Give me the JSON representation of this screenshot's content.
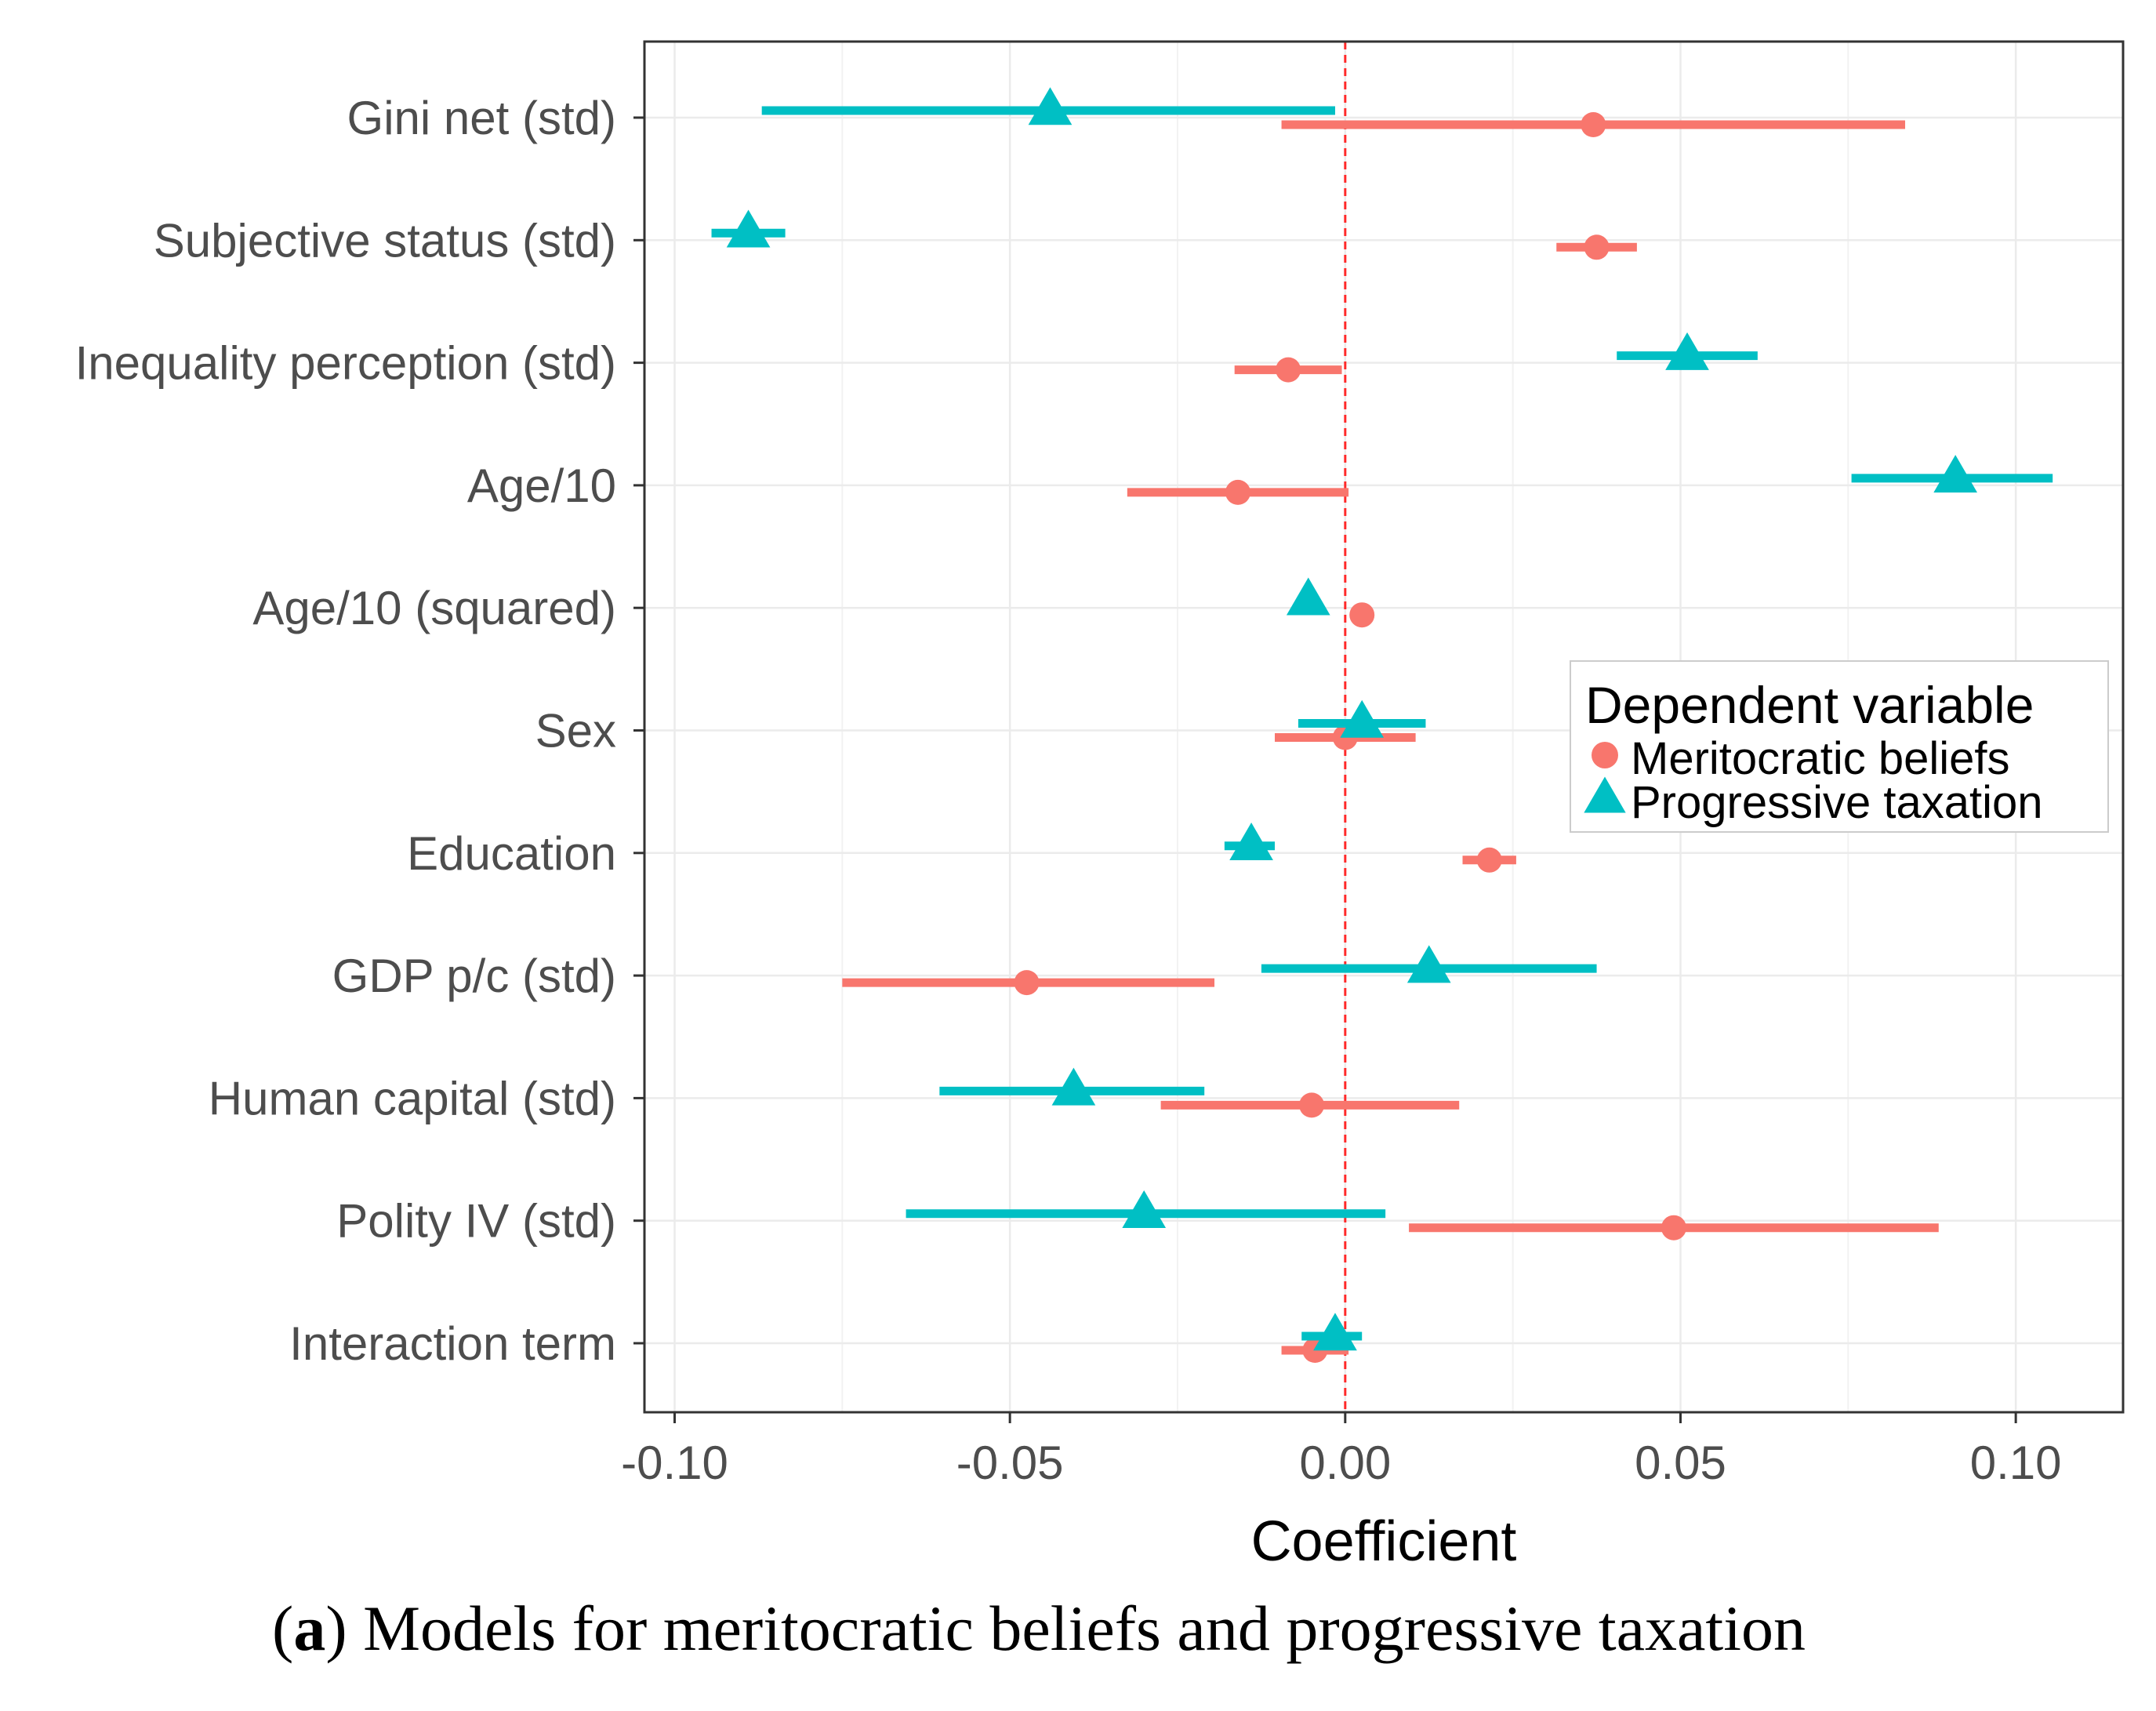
{
  "chart_data": {
    "type": "coefficient-plot",
    "xlabel": "Coefficient",
    "xlim": [
      -0.1045,
      0.116
    ],
    "x_ticks": [
      -0.1,
      -0.05,
      0.0,
      0.05,
      0.1
    ],
    "x_tick_labels": [
      "-0.10",
      "-0.05",
      "0.00",
      "0.05",
      "0.10"
    ],
    "reference_line": 0.0,
    "grid": true,
    "legend": {
      "title": "Dependent variable",
      "placement": "right",
      "entries": [
        "Meritocratic beliefs",
        "Progressive taxation"
      ]
    },
    "categories": [
      "Gini net (std)",
      "Subjective status (std)",
      "Inequality perception (std)",
      "Age/10",
      "Age/10 (squared)",
      "Sex",
      "Education",
      "GDP p/c (std)",
      "Human capital (std)",
      "Polity IV (std)",
      "Interaction term"
    ],
    "series": [
      {
        "name": "Meritocratic beliefs",
        "color": "#F8766D",
        "marker": "circle",
        "estimates": [
          0.037,
          0.0375,
          -0.0085,
          -0.016,
          0.0025,
          0.0,
          0.0215,
          -0.0475,
          -0.005,
          0.049,
          -0.0045
        ],
        "lower": [
          -0.0095,
          0.0315,
          -0.0165,
          -0.0325,
          0.0025,
          -0.0105,
          0.0175,
          -0.075,
          -0.0275,
          0.0095,
          -0.0095
        ],
        "upper": [
          0.0835,
          0.0435,
          -0.0005,
          0.0005,
          0.0025,
          0.0105,
          0.0255,
          -0.0195,
          0.017,
          0.0885,
          0.0005
        ]
      },
      {
        "name": "Progressive taxation",
        "color": "#00BFC4",
        "marker": "triangle",
        "estimates": [
          -0.044,
          -0.089,
          0.051,
          0.091,
          -0.0055,
          0.0025,
          -0.014,
          0.0125,
          -0.0405,
          -0.03,
          -0.0015
        ],
        "lower": [
          -0.087,
          -0.0945,
          0.0405,
          0.0755,
          -0.0055,
          -0.007,
          -0.018,
          -0.0125,
          -0.0605,
          -0.0655,
          -0.0065
        ],
        "upper": [
          -0.0015,
          -0.0835,
          0.0615,
          0.1055,
          -0.0055,
          0.012,
          -0.0105,
          0.0375,
          -0.021,
          0.006,
          0.0025
        ]
      }
    ],
    "caption_label": "a",
    "caption_text": "Models for meritocratic beliefs and progressive taxation"
  }
}
